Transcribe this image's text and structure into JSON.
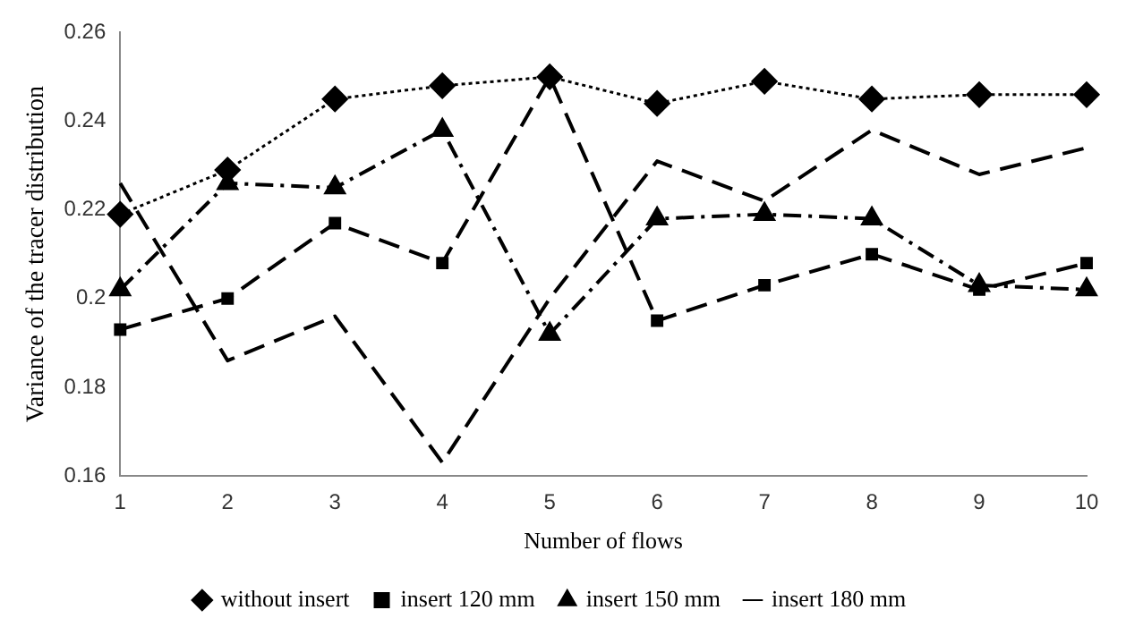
{
  "chart_data": {
    "type": "line",
    "xlabel": "Number of flows",
    "ylabel": "Variance of the tracer distribution",
    "categories": [
      "1",
      "2",
      "3",
      "4",
      "5",
      "6",
      "7",
      "8",
      "9",
      "10"
    ],
    "ylim": [
      0.16,
      0.26
    ],
    "yticks": [
      0.16,
      0.18,
      0.2,
      0.22,
      0.24,
      0.26
    ],
    "grid": false,
    "legend": "bottom",
    "series": [
      {
        "name": "without insert",
        "color": "#000000",
        "marker": "diamond",
        "line_style": "dotted",
        "values": [
          0.219,
          0.229,
          0.245,
          0.248,
          0.25,
          0.244,
          0.249,
          0.245,
          0.246,
          0.246
        ]
      },
      {
        "name": "insert 120 mm",
        "color": "#000000",
        "marker": "square",
        "line_style": "dashed",
        "values": [
          0.193,
          0.2,
          0.217,
          0.208,
          0.25,
          0.195,
          0.203,
          0.21,
          0.202,
          0.208
        ]
      },
      {
        "name": "insert 150 mm",
        "color": "#000000",
        "marker": "triangle",
        "line_style": "dashdot",
        "values": [
          0.202,
          0.226,
          0.225,
          0.238,
          0.192,
          0.218,
          0.219,
          0.218,
          0.203,
          0.202
        ]
      },
      {
        "name": "insert 180 mm",
        "color": "#000000",
        "marker": "none",
        "line_style": "dashed",
        "values": [
          0.226,
          0.186,
          0.196,
          0.163,
          0.2,
          0.231,
          0.222,
          0.238,
          0.228,
          0.234
        ]
      }
    ]
  }
}
